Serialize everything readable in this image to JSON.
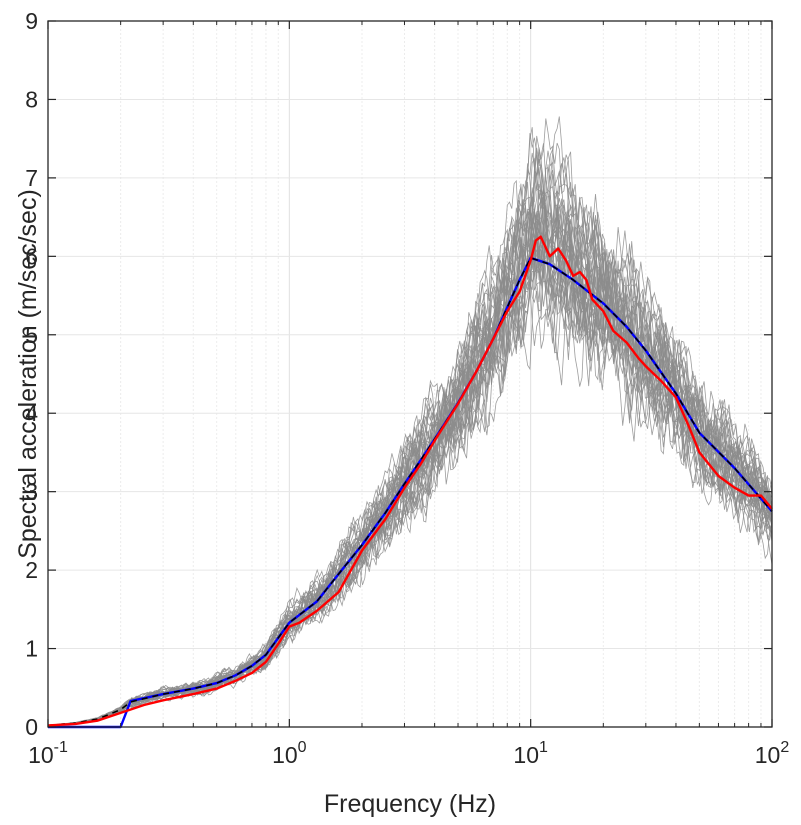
{
  "chart_data": {
    "type": "line",
    "title": "",
    "xlabel": "Frequency (Hz)",
    "ylabel": "Spectral acceleration (m/sec/sec)",
    "xscale": "log",
    "xlim": [
      0.1,
      100
    ],
    "ylim": [
      0,
      9
    ],
    "grid": "on (major and minor)",
    "legend": "none",
    "x_ticks": [
      {
        "base": "10",
        "exp": "-1",
        "value": 0.1
      },
      {
        "base": "10",
        "exp": "0",
        "value": 1
      },
      {
        "base": "10",
        "exp": "1",
        "value": 10
      },
      {
        "base": "10",
        "exp": "2",
        "value": 100
      }
    ],
    "y_ticks": [
      "0",
      "1",
      "2",
      "3",
      "4",
      "5",
      "6",
      "7",
      "8",
      "9"
    ],
    "colors": {
      "records": "#8c8c8c",
      "mean": "#ff0000",
      "target": "#0000ff",
      "design": "#000000",
      "grid": "#e6e6e6",
      "axes": "#262626"
    },
    "series": [
      {
        "color": "#0000ff",
        "style": "solid",
        "x": [
          0.1,
          0.15,
          0.2,
          0.22,
          0.3,
          0.4,
          0.5,
          0.6,
          0.7,
          0.8,
          1.0,
          1.3,
          1.6,
          2.0,
          2.5,
          3.0,
          3.5,
          4.0,
          5.0,
          6.0,
          7.0,
          8.0,
          9.0,
          10.0,
          12,
          15,
          20,
          25,
          30,
          40,
          50,
          70,
          100
        ],
        "y": [
          0.0,
          0.0,
          0.0,
          0.33,
          0.42,
          0.49,
          0.56,
          0.66,
          0.78,
          0.92,
          1.33,
          1.6,
          1.95,
          2.32,
          2.73,
          3.1,
          3.4,
          3.67,
          4.13,
          4.55,
          4.95,
          5.35,
          5.7,
          5.98,
          5.9,
          5.7,
          5.4,
          5.1,
          4.8,
          4.25,
          3.75,
          3.3,
          2.75
        ]
      },
      {
        "color": "#000000",
        "style": "dashed",
        "x": [
          0.1,
          0.13,
          0.16,
          0.2,
          0.22,
          0.3,
          0.4,
          0.5,
          0.6,
          0.7,
          0.8,
          1.0,
          1.3,
          1.6,
          2.0,
          2.5,
          3.0,
          3.5,
          4.0,
          5.0,
          6.0,
          7.0,
          8.0,
          9.0,
          10.0,
          12,
          15,
          20,
          25,
          30,
          40,
          50,
          70,
          100
        ],
        "y": [
          0.02,
          0.05,
          0.1,
          0.22,
          0.32,
          0.42,
          0.49,
          0.56,
          0.66,
          0.78,
          0.92,
          1.33,
          1.6,
          1.95,
          2.32,
          2.73,
          3.1,
          3.4,
          3.67,
          4.13,
          4.55,
          4.95,
          5.35,
          5.7,
          5.98,
          5.9,
          5.7,
          5.4,
          5.1,
          4.8,
          4.25,
          3.75,
          3.3,
          2.75
        ]
      },
      {
        "color": "#ff0000",
        "style": "solid",
        "x": [
          0.1,
          0.13,
          0.16,
          0.2,
          0.25,
          0.3,
          0.4,
          0.5,
          0.6,
          0.7,
          0.8,
          0.9,
          1.0,
          1.1,
          1.3,
          1.6,
          2.0,
          2.5,
          3.0,
          3.5,
          4.0,
          4.5,
          5.0,
          6.0,
          7.0,
          8.0,
          9.0,
          10.0,
          10.5,
          11,
          12,
          13,
          14,
          15,
          16,
          17,
          18,
          20,
          22,
          25,
          28,
          30,
          35,
          40,
          45,
          50,
          60,
          70,
          80,
          90,
          100
        ],
        "y": [
          0.02,
          0.04,
          0.08,
          0.18,
          0.28,
          0.34,
          0.42,
          0.49,
          0.59,
          0.69,
          0.83,
          1.06,
          1.28,
          1.33,
          1.48,
          1.72,
          2.25,
          2.65,
          3.05,
          3.35,
          3.65,
          3.9,
          4.12,
          4.55,
          4.95,
          5.3,
          5.55,
          5.95,
          6.2,
          6.25,
          6.0,
          6.1,
          5.95,
          5.75,
          5.8,
          5.7,
          5.45,
          5.3,
          5.05,
          4.9,
          4.7,
          4.6,
          4.4,
          4.2,
          3.85,
          3.5,
          3.2,
          3.05,
          2.95,
          2.95,
          2.78
        ]
      }
    ]
  }
}
